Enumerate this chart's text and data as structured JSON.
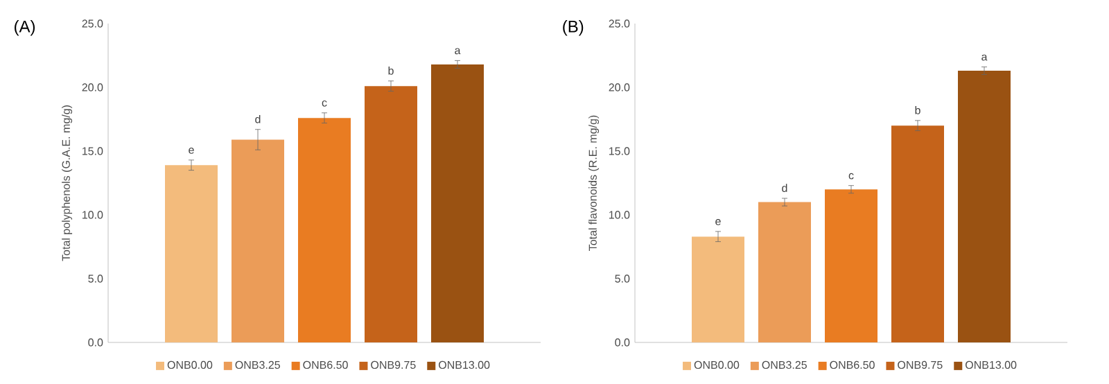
{
  "chart_data": [
    {
      "type": "bar",
      "title": "(A)",
      "ylabel": "Total polyphenols (G.A.E. mg/g)",
      "categories": [
        null
      ],
      "ylim": [
        0,
        25
      ],
      "yticks": [
        {
          "value": 0,
          "label": "0.0"
        },
        {
          "value": 5,
          "label": "5.0"
        },
        {
          "value": 10,
          "label": "10.0"
        },
        {
          "value": 15,
          "label": "15.0"
        },
        {
          "value": 20,
          "label": "20.0"
        },
        {
          "value": 25,
          "label": "25.0"
        }
      ],
      "legend": "bottom",
      "series": [
        {
          "name": "ONB0.00",
          "color": "#f3bb7c",
          "values": [
            13.9
          ],
          "errors": [
            0.4
          ],
          "value_labels": [
            "e"
          ]
        },
        {
          "name": "ONB3.25",
          "color": "#eb9c58",
          "values": [
            15.9
          ],
          "errors": [
            0.8
          ],
          "value_labels": [
            "d"
          ]
        },
        {
          "name": "ONB6.50",
          "color": "#e97c22",
          "values": [
            17.6
          ],
          "errors": [
            0.4
          ],
          "value_labels": [
            "c"
          ]
        },
        {
          "name": "ONB9.75",
          "color": "#c5631a",
          "values": [
            20.1
          ],
          "errors": [
            0.4
          ],
          "value_labels": [
            "b"
          ]
        },
        {
          "name": "ONB13.00",
          "color": "#9a5212",
          "values": [
            21.8
          ],
          "errors": [
            0.3
          ],
          "value_labels": [
            "a"
          ]
        }
      ]
    },
    {
      "type": "bar",
      "title": "(B)",
      "ylabel": "Total flavonoids (R.E. mg/g)",
      "categories": [
        null
      ],
      "ylim": [
        0,
        25
      ],
      "yticks": [
        {
          "value": 0,
          "label": "0.0"
        },
        {
          "value": 5,
          "label": "5.0"
        },
        {
          "value": 10,
          "label": "10.0"
        },
        {
          "value": 15,
          "label": "15.0"
        },
        {
          "value": 20,
          "label": "20.0"
        },
        {
          "value": 25,
          "label": "25.0"
        }
      ],
      "legend": "bottom",
      "series": [
        {
          "name": "ONB0.00",
          "color": "#f3bb7c",
          "values": [
            8.3
          ],
          "errors": [
            0.4
          ],
          "value_labels": [
            "e"
          ]
        },
        {
          "name": "ONB3.25",
          "color": "#eb9c58",
          "values": [
            11.0
          ],
          "errors": [
            0.3
          ],
          "value_labels": [
            "d"
          ]
        },
        {
          "name": "ONB6.50",
          "color": "#e97c22",
          "values": [
            12.0
          ],
          "errors": [
            0.3
          ],
          "value_labels": [
            "c"
          ]
        },
        {
          "name": "ONB9.75",
          "color": "#c5631a",
          "values": [
            17.0
          ],
          "errors": [
            0.4
          ],
          "value_labels": [
            "b"
          ]
        },
        {
          "name": "ONB13.00",
          "color": "#9a5212",
          "values": [
            21.3
          ],
          "errors": [
            0.3
          ],
          "value_labels": [
            "a"
          ]
        }
      ]
    }
  ]
}
